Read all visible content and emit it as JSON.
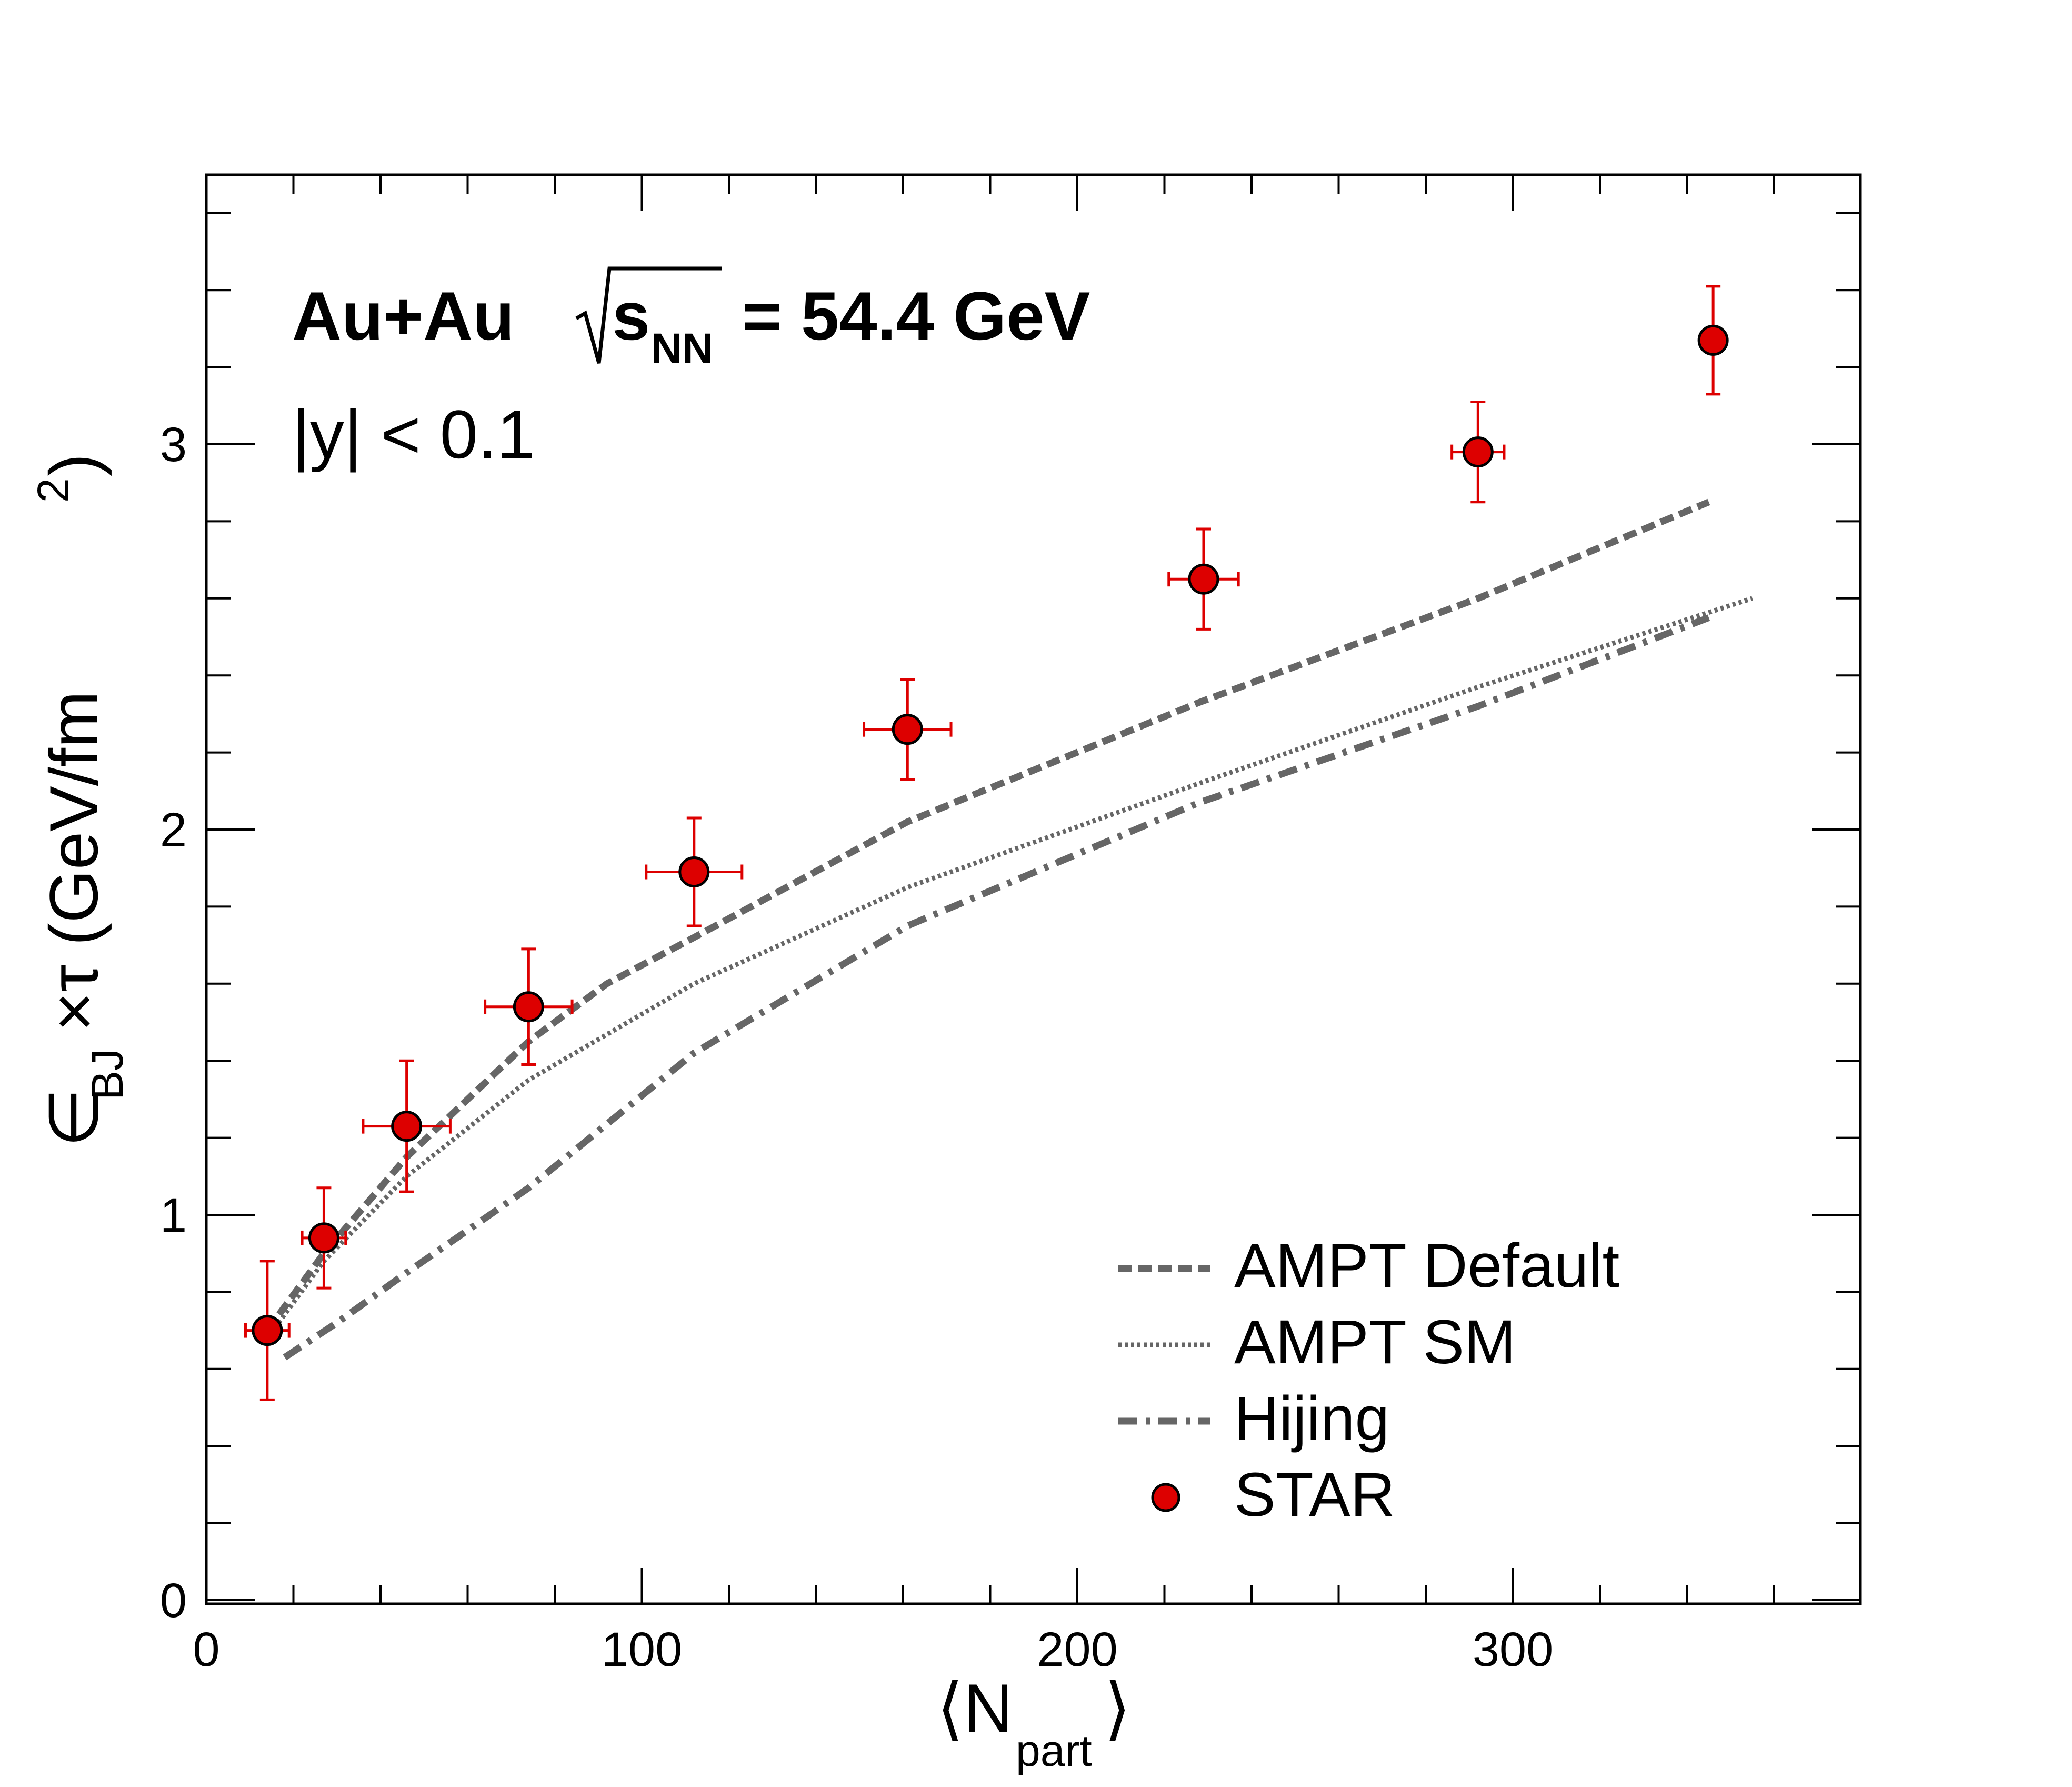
{
  "chart_data": {
    "type": "scatter",
    "xlabel": "⟨N",
    "xlabel_sub": "part",
    "xlabel_close": "⟩",
    "ylabel": "∈",
    "ylabel_sub": "BJ",
    "ylabel_rest": "×τ (GeV/fm",
    "ylabel_sup": "2",
    "ylabel_close": ")",
    "xlim": [
      0,
      380
    ],
    "ylim": [
      -0.02,
      3.7
    ],
    "xticks": [
      0,
      100,
      200,
      300
    ],
    "xtick_labels": [
      "0",
      "100",
      "200",
      "300"
    ],
    "yticks": [
      0,
      1,
      2,
      3
    ],
    "ytick_labels": [
      "0",
      "1",
      "2",
      "3"
    ],
    "annotation_system": "Au+Au",
    "annotation_s": "s",
    "annotation_s_sub": "NN",
    "annotation_energy": "= 54.4 GeV",
    "annotation_rapidity": "|y| < 0.1",
    "legend_position": "bottom-right",
    "grid": false,
    "series": [
      {
        "name": "AMPT Default",
        "kind": "line",
        "style": "dashed",
        "color": "#666666",
        "x": [
          14,
          27,
          46,
          74,
          92,
          112,
          161,
          228,
          292,
          345
        ],
        "y": [
          0.7,
          0.9,
          1.15,
          1.45,
          1.6,
          1.72,
          2.02,
          2.33,
          2.6,
          2.85
        ]
      },
      {
        "name": "AMPT SM",
        "kind": "line",
        "style": "dotted",
        "color": "#666666",
        "x": [
          14,
          27,
          46,
          74,
          112,
          161,
          228,
          292,
          355
        ],
        "y": [
          0.68,
          0.88,
          1.1,
          1.35,
          1.6,
          1.85,
          2.12,
          2.37,
          2.6
        ]
      },
      {
        "name": "Hijing",
        "kind": "line",
        "style": "dashdot",
        "color": "#666666",
        "x": [
          18,
          30,
          46,
          74,
          112,
          161,
          228,
          292,
          345
        ],
        "y": [
          0.63,
          0.72,
          0.85,
          1.07,
          1.42,
          1.75,
          2.07,
          2.32,
          2.55
        ]
      },
      {
        "name": "STAR",
        "kind": "points",
        "color": "#dd0000",
        "x": [
          14,
          27,
          46,
          74,
          112,
          161,
          229,
          292,
          346
        ],
        "y": [
          0.7,
          0.94,
          1.23,
          1.54,
          1.89,
          2.26,
          2.65,
          2.98,
          3.27
        ],
        "yerr": [
          0.18,
          0.13,
          0.17,
          0.15,
          0.14,
          0.13,
          0.13,
          0.13,
          0.14
        ],
        "xerr": [
          5,
          5,
          10,
          10,
          11,
          10,
          8,
          6,
          0
        ]
      }
    ]
  }
}
